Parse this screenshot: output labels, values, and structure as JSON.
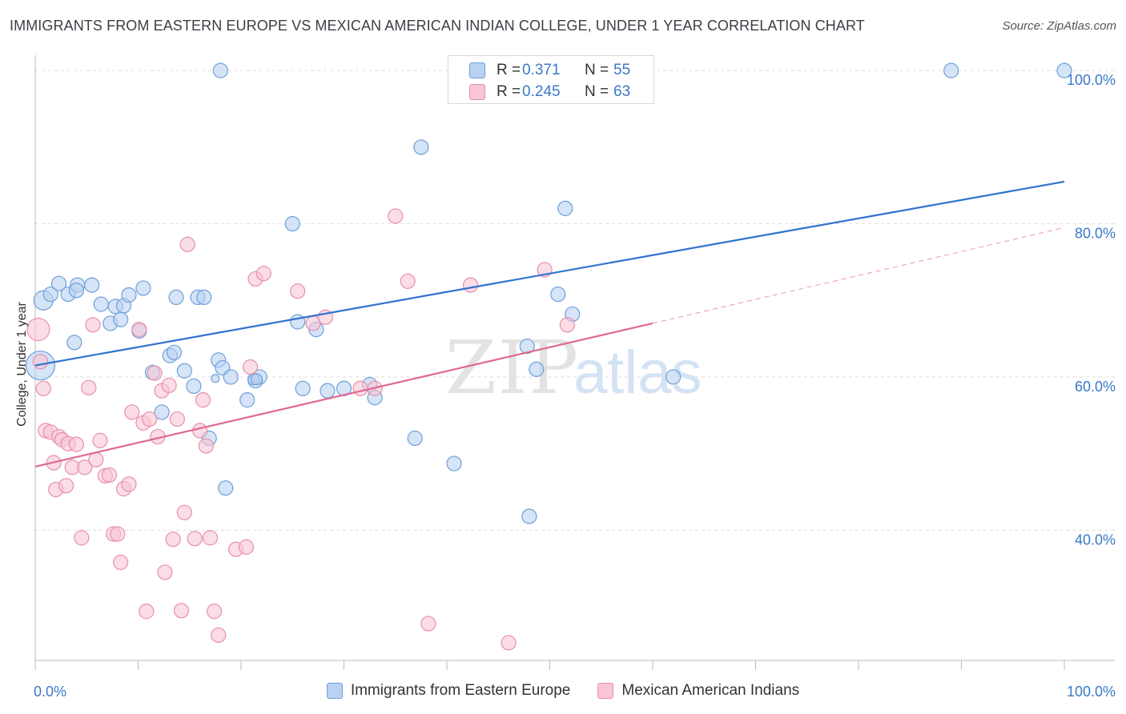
{
  "title": "IMMIGRANTS FROM EASTERN EUROPE VS MEXICAN AMERICAN INDIAN COLLEGE, UNDER 1 YEAR CORRELATION CHART",
  "source": "Source: ZipAtlas.com",
  "watermark": {
    "zip": "ZIP",
    "atlas": "atlas"
  },
  "stats_box": {
    "r_label": "R =",
    "n_label": "N =",
    "rows": [
      {
        "r": "0.371",
        "n": "55"
      },
      {
        "r": "0.245",
        "n": "63"
      }
    ]
  },
  "colors": {
    "blue_fill": "#b9d2f2",
    "blue_stroke": "#6f9fd8",
    "blue_line": "#2f72cf",
    "pink_fill": "#f8c6d6",
    "pink_stroke": "#e88fab",
    "pink_line": "#e06891",
    "tick_text": "#3b78c8",
    "grid": "#dddddd"
  },
  "chart_data": {
    "type": "scatter",
    "title": "IMMIGRANTS FROM EASTERN EUROPE VS MEXICAN AMERICAN INDIAN COLLEGE, UNDER 1 YEAR CORRELATION CHART",
    "xlabel": "",
    "ylabel": "College, Under 1 year",
    "xlim": [
      0,
      100
    ],
    "ylim": [
      23,
      102
    ],
    "x_tick_labels": [
      "0.0%",
      "100.0%"
    ],
    "y_ticks": [
      {
        "value": 100,
        "label": "100.0%"
      },
      {
        "value": 80,
        "label": "80.0%"
      },
      {
        "value": 60,
        "label": "60.0%"
      },
      {
        "value": 40,
        "label": "40.0%"
      }
    ],
    "legend_position": "bottom",
    "series": [
      {
        "name": "Immigrants from Eastern Europe",
        "color": "blue",
        "trend": {
          "x0": 0,
          "y0": 61.5,
          "x1": 100,
          "y1": 85.5,
          "dashed_to": null
        },
        "points": [
          [
            0.5,
            61.5,
            18
          ],
          [
            0.8,
            70,
            12
          ],
          [
            1.5,
            70.8,
            9
          ],
          [
            2.3,
            72.2,
            9
          ],
          [
            3.2,
            70.8,
            9
          ],
          [
            3.8,
            64.5,
            9
          ],
          [
            4.1,
            72,
            9
          ],
          [
            4,
            71.3,
            9
          ],
          [
            5.5,
            72,
            9
          ],
          [
            6.4,
            69.5,
            9
          ],
          [
            7.3,
            67,
            9
          ],
          [
            7.8,
            69.2,
            9
          ],
          [
            8.3,
            67.5,
            9
          ],
          [
            8.6,
            69.3,
            9
          ],
          [
            9.1,
            70.7,
            9
          ],
          [
            10.1,
            66,
            9
          ],
          [
            10.5,
            71.6,
            9
          ],
          [
            11.4,
            60.6,
            9
          ],
          [
            12.3,
            55.4,
            9
          ],
          [
            13.1,
            62.8,
            9
          ],
          [
            13.5,
            63.2,
            9
          ],
          [
            13.7,
            70.4,
            9
          ],
          [
            14.5,
            60.8,
            9
          ],
          [
            15.4,
            58.8,
            9
          ],
          [
            15.8,
            70.4,
            9
          ],
          [
            16.4,
            70.4,
            9
          ],
          [
            16.9,
            52,
            9
          ],
          [
            17.8,
            62.2,
            9
          ],
          [
            18.2,
            61.2,
            9
          ],
          [
            19,
            60,
            9
          ],
          [
            20.6,
            57,
            9
          ],
          [
            21.4,
            59.5,
            9
          ],
          [
            21.8,
            60,
            9
          ],
          [
            17.5,
            59.8,
            5
          ],
          [
            18,
            100,
            9
          ],
          [
            18.5,
            45.5,
            9
          ],
          [
            21.2,
            59.7,
            7
          ],
          [
            21.5,
            59.7,
            7
          ],
          [
            25,
            80,
            9
          ],
          [
            25.5,
            67.2,
            9
          ],
          [
            26,
            58.5,
            9
          ],
          [
            27.3,
            66.2,
            9
          ],
          [
            28.4,
            58.2,
            9
          ],
          [
            30,
            58.5,
            9
          ],
          [
            32.5,
            59,
            9
          ],
          [
            33,
            57.3,
            9
          ],
          [
            36.9,
            52,
            9
          ],
          [
            37.5,
            90,
            9
          ],
          [
            40.7,
            48.7,
            9
          ],
          [
            47.8,
            64,
            9
          ],
          [
            48,
            41.8,
            9
          ],
          [
            48.7,
            61,
            9
          ],
          [
            50.8,
            70.8,
            9
          ],
          [
            51.5,
            82,
            9
          ],
          [
            52.2,
            68.2,
            9
          ],
          [
            62,
            60,
            9
          ],
          [
            89,
            100,
            9
          ],
          [
            100,
            100,
            9
          ]
        ]
      },
      {
        "name": "Mexican American Indians",
        "color": "pink",
        "trend": {
          "x0": 0,
          "y0": 48.3,
          "x1": 60,
          "y1": 67,
          "dashed_to": {
            "x": 100,
            "y": 79.5
          }
        },
        "points": [
          [
            0.3,
            66.2,
            14
          ],
          [
            0.5,
            62,
            9
          ],
          [
            0.8,
            58.5,
            9
          ],
          [
            1,
            53,
            9
          ],
          [
            1.5,
            52.8,
            9
          ],
          [
            1.8,
            48.8,
            9
          ],
          [
            2,
            45.3,
            9
          ],
          [
            2.3,
            52.2,
            9
          ],
          [
            2.6,
            51.8,
            9
          ],
          [
            3,
            45.8,
            9
          ],
          [
            3.2,
            51.3,
            9
          ],
          [
            3.6,
            48.2,
            9
          ],
          [
            4,
            51.2,
            9
          ],
          [
            4.5,
            39,
            9
          ],
          [
            4.8,
            48.2,
            9
          ],
          [
            5.2,
            58.6,
            9
          ],
          [
            5.6,
            66.8,
            9
          ],
          [
            5.9,
            49.2,
            9
          ],
          [
            6.3,
            51.7,
            9
          ],
          [
            6.8,
            47.1,
            9
          ],
          [
            7.2,
            47.2,
            9
          ],
          [
            7.6,
            39.5,
            9
          ],
          [
            8,
            39.5,
            9
          ],
          [
            8.3,
            35.8,
            9
          ],
          [
            8.6,
            45.4,
            9
          ],
          [
            9.1,
            46,
            9
          ],
          [
            9.4,
            55.4,
            9
          ],
          [
            10.1,
            66.2,
            9
          ],
          [
            10.5,
            54,
            9
          ],
          [
            10.8,
            29.4,
            9
          ],
          [
            11.1,
            54.5,
            9
          ],
          [
            11.6,
            60.5,
            9
          ],
          [
            11.9,
            52.2,
            9
          ],
          [
            12.3,
            58.2,
            9
          ],
          [
            12.6,
            34.5,
            9
          ],
          [
            13,
            58.9,
            9
          ],
          [
            13.4,
            38.8,
            9
          ],
          [
            13.8,
            54.5,
            9
          ],
          [
            14.2,
            29.5,
            9
          ],
          [
            14.5,
            42.3,
            9
          ],
          [
            14.8,
            77.3,
            9
          ],
          [
            15.5,
            38.9,
            9
          ],
          [
            16,
            53,
            9
          ],
          [
            16.3,
            57,
            9
          ],
          [
            16.6,
            51,
            9
          ],
          [
            17,
            39,
            9
          ],
          [
            17.4,
            29.4,
            9
          ],
          [
            17.8,
            26.3,
            9
          ],
          [
            19.5,
            37.5,
            9
          ],
          [
            20.5,
            37.8,
            9
          ],
          [
            20.9,
            61.3,
            9
          ],
          [
            21.4,
            72.8,
            9
          ],
          [
            22.2,
            73.5,
            9
          ],
          [
            25.5,
            71.2,
            9
          ],
          [
            27,
            67,
            9
          ],
          [
            28.2,
            67.8,
            9
          ],
          [
            31.6,
            58.5,
            9
          ],
          [
            33,
            58.5,
            9
          ],
          [
            35,
            81,
            9
          ],
          [
            36.2,
            72.5,
            9
          ],
          [
            38.2,
            27.8,
            9
          ],
          [
            42.3,
            72,
            9
          ],
          [
            46,
            25.3,
            9
          ],
          [
            49.5,
            74,
            9
          ],
          [
            51.7,
            66.8,
            9
          ]
        ]
      }
    ]
  }
}
